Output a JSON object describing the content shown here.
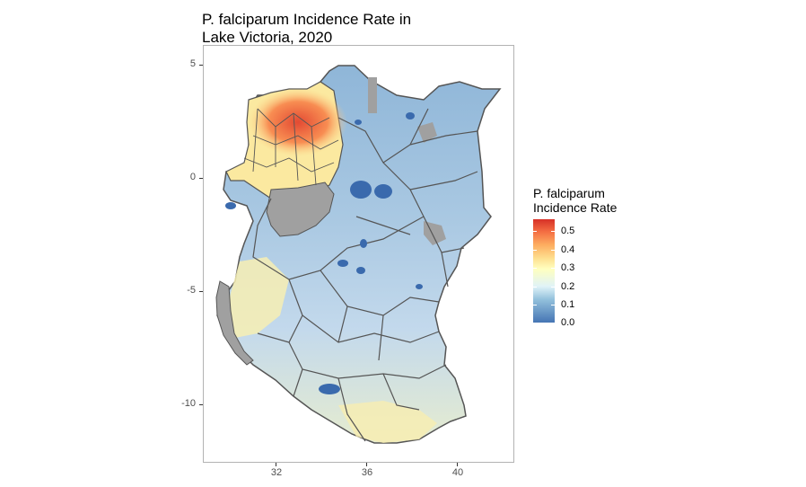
{
  "title": {
    "line1": "P. falciparum Incidence Rate in",
    "line2": "Lake Victoria, 2020"
  },
  "axes": {
    "y_ticks": [
      "5",
      "0",
      "-5",
      "-10"
    ],
    "x_ticks": [
      "32",
      "36",
      "40"
    ]
  },
  "legend": {
    "title_line1": "P. falciparum",
    "title_line2": "Incidence Rate",
    "labels": [
      "0.5",
      "0.4",
      "0.3",
      "0.2",
      "0.1",
      "0.0"
    ]
  },
  "colors": {
    "low": "#4575b4",
    "mid": "#ffffbf",
    "high": "#d73027",
    "missing": "#a0a0a0",
    "border": "#555555"
  }
}
